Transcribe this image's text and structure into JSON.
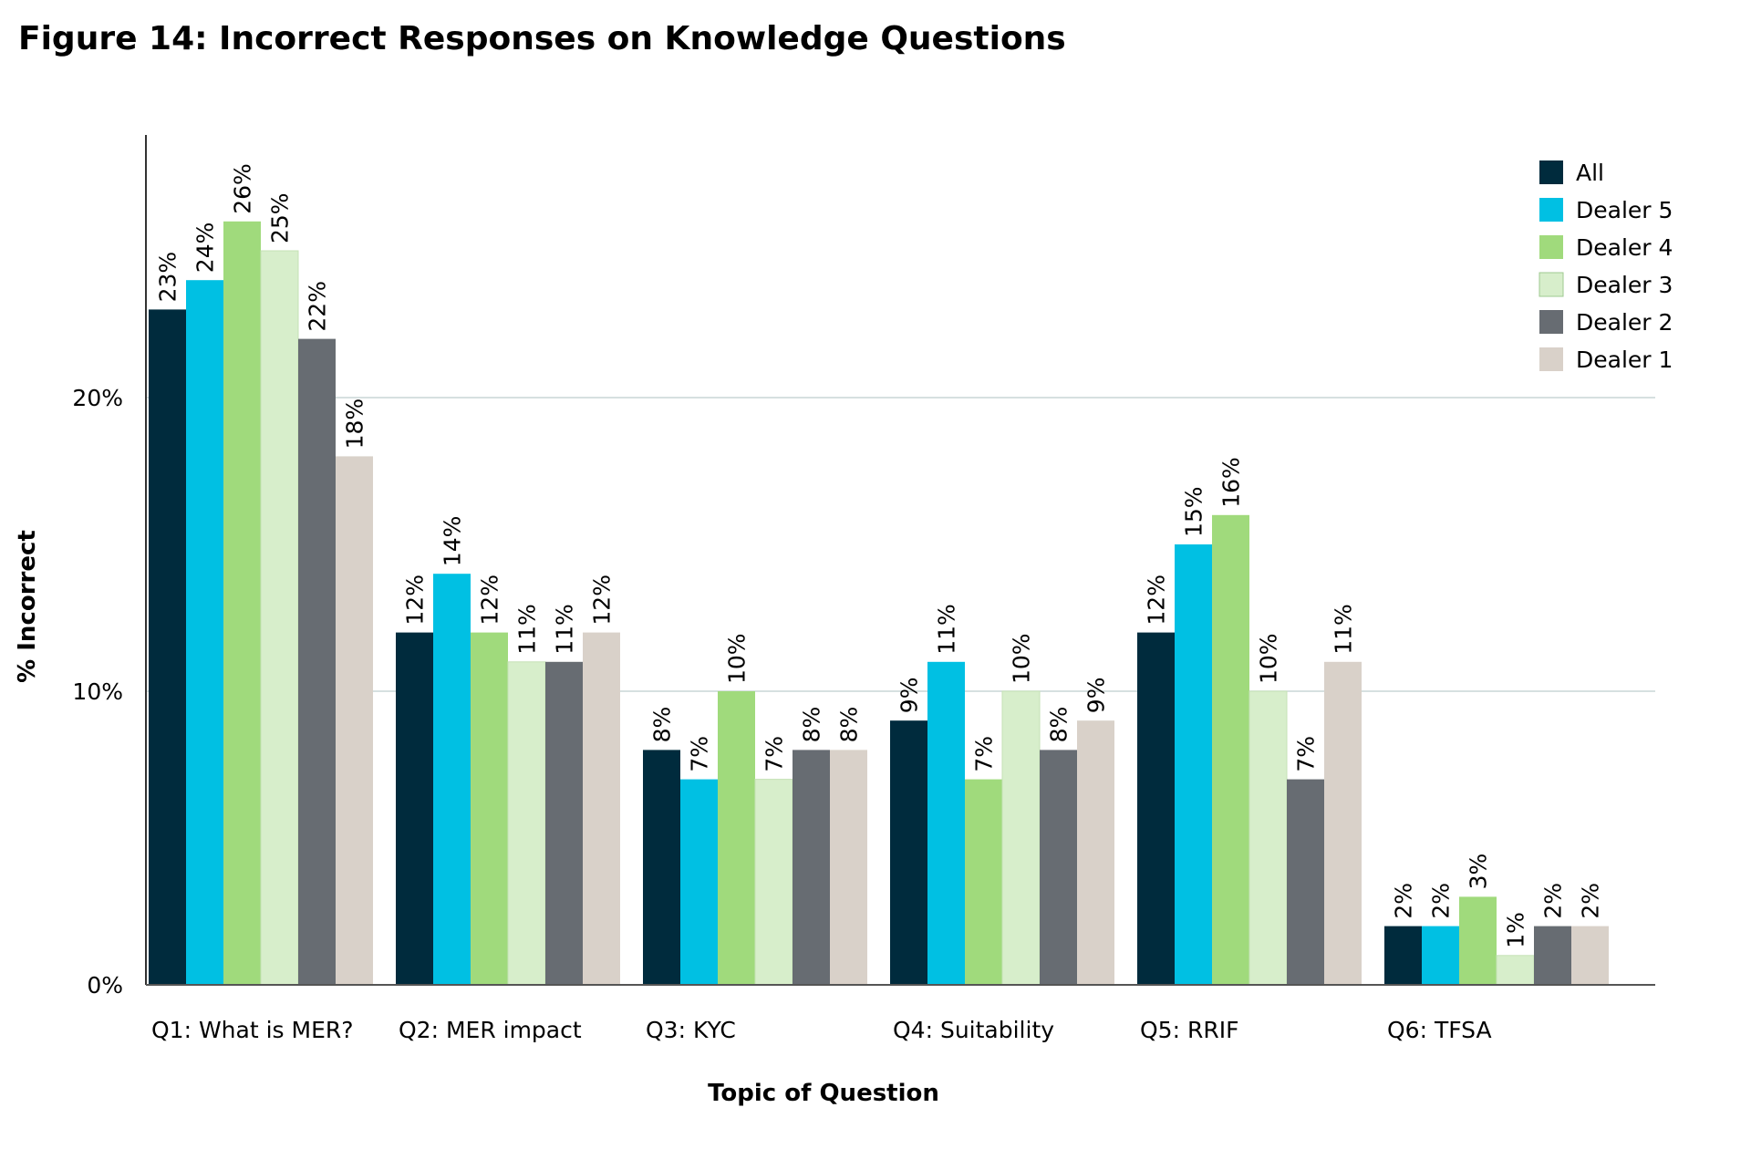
{
  "figure_title": "Figure 14: Incorrect Responses on Knowledge Questions",
  "chart_data": {
    "type": "bar",
    "title": "Figure 14: Incorrect Responses on Knowledge Questions",
    "xlabel": "Topic of Question",
    "ylabel": "% Incorrect",
    "ylim": [
      0,
      29
    ],
    "yticks": [
      0,
      10,
      20
    ],
    "ytick_labels": [
      "0%",
      "10%",
      "20%"
    ],
    "grid": true,
    "legend_position": "top-right",
    "categories": [
      "Q1: What is MER?",
      "Q2: MER impact",
      "Q3: KYC",
      "Q4: Suitability",
      "Q5: RRIF",
      "Q6: TFSA"
    ],
    "series": [
      {
        "name": "All",
        "color": "#002b3d",
        "values": [
          23,
          12,
          8,
          9,
          12,
          2
        ],
        "labels": [
          "23%",
          "12%",
          "8%",
          "9%",
          "12%",
          "2%"
        ]
      },
      {
        "name": "Dealer 5",
        "color": "#00c0e3",
        "values": [
          24,
          14,
          7,
          11,
          15,
          2
        ],
        "labels": [
          "24%",
          "14%",
          "7%",
          "11%",
          "15%",
          "2%"
        ]
      },
      {
        "name": "Dealer 4",
        "color": "#a0da7c",
        "values": [
          26,
          12,
          10,
          7,
          16,
          3
        ],
        "labels": [
          "26%",
          "12%",
          "10%",
          "7%",
          "16%",
          "3%"
        ]
      },
      {
        "name": "Dealer 3",
        "color": "#d7eecb",
        "values": [
          25,
          11,
          7,
          10,
          10,
          1
        ],
        "labels": [
          "25%",
          "11%",
          "7%",
          "10%",
          "10%",
          "1%"
        ]
      },
      {
        "name": "Dealer 2",
        "color": "#676c72",
        "values": [
          22,
          11,
          8,
          8,
          7,
          2
        ],
        "labels": [
          "22%",
          "11%",
          "8%",
          "8%",
          "7%",
          "2%"
        ]
      },
      {
        "name": "Dealer 1",
        "color": "#d9d1c9",
        "values": [
          18,
          12,
          8,
          9,
          11,
          2
        ],
        "labels": [
          "18%",
          "12%",
          "8%",
          "9%",
          "11%",
          "2%"
        ]
      }
    ]
  }
}
